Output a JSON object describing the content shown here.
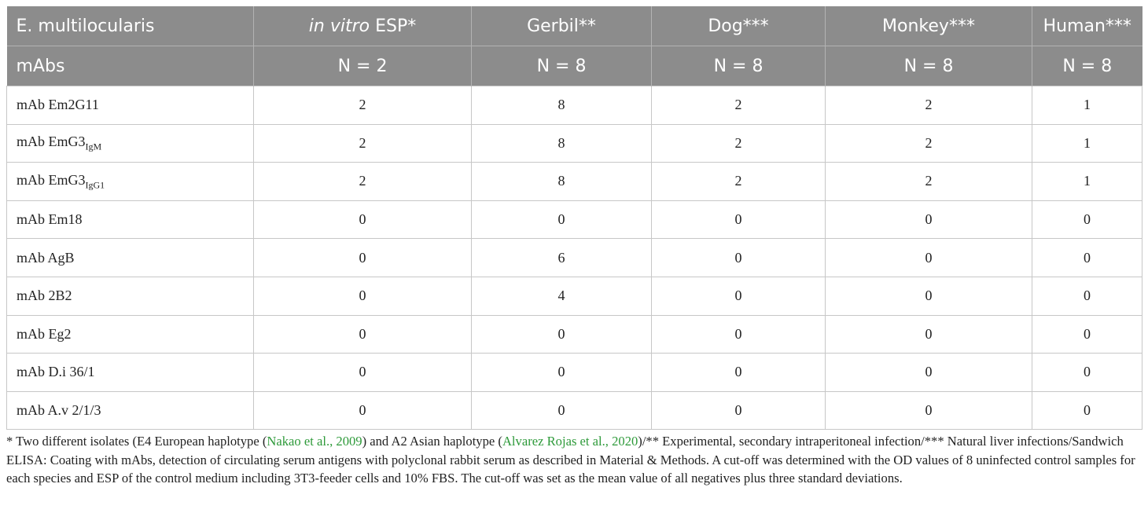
{
  "table": {
    "header_row1": {
      "col0": "E. multilocularis",
      "col1_italic": "in vitro",
      "col1_rest": " ESP*",
      "col2": "Gerbil**",
      "col3": "Dog***",
      "col4": "Monkey***",
      "col5": "Human***"
    },
    "header_row2": {
      "col0": "mAbs",
      "col1": "N = 2",
      "col2": "N = 8",
      "col3": "N = 8",
      "col4": "N = 8",
      "col5": "N = 8"
    },
    "rows": [
      {
        "label": "mAb Em2G11",
        "label_sub": "",
        "values": [
          "2",
          "8",
          "2",
          "2",
          "1"
        ]
      },
      {
        "label": "mAb EmG3",
        "label_sub": "IgM",
        "values": [
          "2",
          "8",
          "2",
          "2",
          "1"
        ]
      },
      {
        "label": "mAb EmG3",
        "label_sub": "IgG1",
        "values": [
          "2",
          "8",
          "2",
          "2",
          "1"
        ]
      },
      {
        "label": "mAb Em18",
        "label_sub": "",
        "values": [
          "0",
          "0",
          "0",
          "0",
          "0"
        ]
      },
      {
        "label": "mAb AgB",
        "label_sub": "",
        "values": [
          "0",
          "6",
          "0",
          "0",
          "0"
        ]
      },
      {
        "label": "mAb 2B2",
        "label_sub": "",
        "values": [
          "0",
          "4",
          "0",
          "0",
          "0"
        ]
      },
      {
        "label": "mAb Eg2",
        "label_sub": "",
        "values": [
          "0",
          "0",
          "0",
          "0",
          "0"
        ]
      },
      {
        "label": "mAb D.i 36/1",
        "label_sub": "",
        "values": [
          "0",
          "0",
          "0",
          "0",
          "0"
        ]
      },
      {
        "label": "mAb A.v 2/1/3",
        "label_sub": "",
        "values": [
          "0",
          "0",
          "0",
          "0",
          "0"
        ]
      }
    ]
  },
  "footnote": {
    "part1": "* Two different isolates (E4 European haplotype (",
    "link1": "Nakao et al., 2009",
    "part2": ") and A2 Asian haplotype (",
    "link2": "Alvarez Rojas et al., 2020",
    "part3": ")/** Experimental, secondary intraperitoneal infection/*** Natural liver infections/Sandwich ELISA: Coating with mAbs, detection of circulating serum antigens with polyclonal rabbit serum as described in Material & Methods. A cut-off was determined with the OD values of 8 uninfected control samples for each species and ESP of the control medium including 3T3-feeder cells and 10% FBS. The cut-off was set as the mean value of all negatives plus three standard deviations."
  },
  "colors": {
    "header_bg": "#8c8c8c",
    "link": "#2e9a3a"
  }
}
